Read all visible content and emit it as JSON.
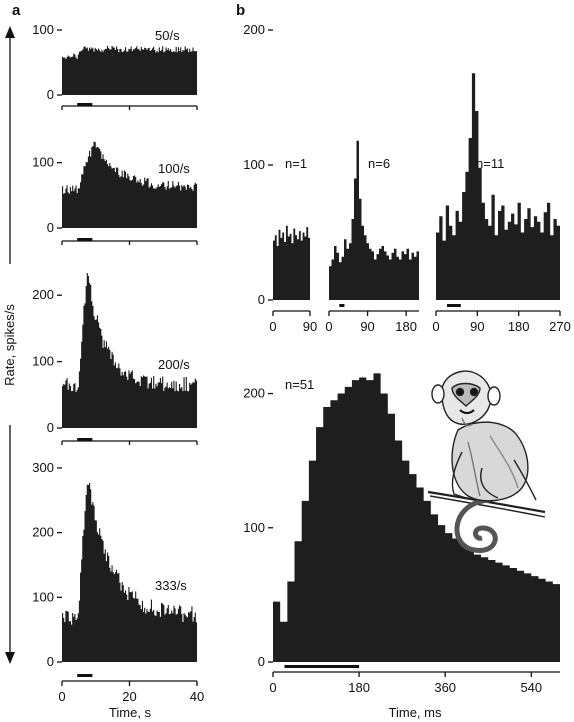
{
  "figure": {
    "panel_a_label": "a",
    "panel_b_label": "b",
    "y_axis_label": "Rate, spikes/s",
    "panel_a_x_label": "Time, s",
    "panel_b_x_label": "Time, ms"
  },
  "chart_data": [
    {
      "id": "a1",
      "type": "histogram",
      "label": "50/s",
      "xlim": [
        0,
        40
      ],
      "ylim": [
        0,
        100
      ],
      "yticks": [
        0,
        100
      ],
      "stim": [
        4.5,
        9
      ],
      "profile": {
        "baseline": 60,
        "peak": 72,
        "plateau": 70,
        "onset": 2,
        "decay": 10
      }
    },
    {
      "id": "a2",
      "type": "histogram",
      "label": "100/s",
      "xlim": [
        0,
        40
      ],
      "ylim": [
        0,
        150
      ],
      "yticks": [
        0,
        100
      ],
      "stim": [
        4.5,
        9
      ],
      "profile": {
        "baseline": 58,
        "peak": 130,
        "plateau": 62,
        "onset": 5,
        "decay": 7
      }
    },
    {
      "id": "a3",
      "type": "histogram",
      "label": "200/s",
      "xlim": [
        0,
        40
      ],
      "ylim": [
        0,
        250
      ],
      "yticks": [
        0,
        100,
        200
      ],
      "stim": [
        4.5,
        9
      ],
      "profile": {
        "baseline": 65,
        "peak": 235,
        "plateau": 65,
        "onset": 3,
        "decay": 5
      }
    },
    {
      "id": "a4",
      "type": "histogram",
      "label": "333/s",
      "xlim": [
        0,
        40
      ],
      "xticks": [
        0,
        20,
        40
      ],
      "ylim": [
        0,
        320
      ],
      "yticks": [
        0,
        100,
        200,
        300
      ],
      "stim": [
        4.5,
        9
      ],
      "profile": {
        "baseline": 70,
        "peak": 285,
        "plateau": 70,
        "onset": 3,
        "decay": 7
      }
    },
    {
      "id": "b1",
      "type": "histogram",
      "label": "n=1",
      "xlim": [
        0,
        90
      ],
      "xticks": [
        0,
        90
      ],
      "ylim": [
        0,
        200
      ],
      "yticks": [
        0,
        100,
        200
      ],
      "values": [
        44,
        48,
        40,
        52,
        46,
        50,
        43,
        55,
        47,
        49,
        42,
        53,
        48,
        45,
        51,
        44,
        50,
        47,
        54,
        46
      ]
    },
    {
      "id": "b2",
      "type": "histogram",
      "label": "n=6",
      "xlim": [
        0,
        210
      ],
      "xticks": [
        0,
        90,
        180
      ],
      "ylim": [
        0,
        200
      ],
      "stim": [
        24,
        36
      ],
      "values": [
        25,
        30,
        40,
        35,
        28,
        32,
        45,
        38,
        42,
        60,
        90,
        118,
        75,
        55,
        48,
        42,
        38,
        36,
        30,
        34,
        38,
        40,
        36,
        33,
        30,
        35,
        38,
        32,
        30,
        36,
        34,
        38,
        30,
        35,
        32,
        36
      ]
    },
    {
      "id": "b3",
      "type": "histogram",
      "label": "n=11",
      "xlim": [
        0,
        270
      ],
      "xticks": [
        0,
        90,
        180,
        270
      ],
      "ylim": [
        0,
        200
      ],
      "stim": [
        24,
        54
      ],
      "values": [
        50,
        62,
        44,
        70,
        55,
        48,
        66,
        58,
        80,
        95,
        120,
        168,
        140,
        98,
        72,
        60,
        55,
        78,
        48,
        66,
        70,
        52,
        58,
        64,
        56,
        72,
        50,
        60,
        68,
        54,
        62,
        58,
        50,
        65,
        72,
        48,
        60,
        55
      ]
    },
    {
      "id": "b4",
      "type": "histogram",
      "label": "n=51",
      "xlim": [
        0,
        600
      ],
      "xticks": [
        0,
        180,
        360,
        540
      ],
      "ylim": [
        0,
        225
      ],
      "yticks": [
        0,
        100,
        200
      ],
      "stim": [
        24,
        180
      ],
      "bin_width": 15,
      "values": [
        45,
        30,
        60,
        90,
        120,
        150,
        175,
        190,
        195,
        200,
        205,
        210,
        212,
        210,
        215,
        200,
        185,
        165,
        150,
        140,
        130,
        120,
        110,
        102,
        96,
        92,
        88,
        84,
        80,
        78,
        76,
        74,
        72,
        70,
        68,
        66,
        64,
        62,
        60,
        58
      ]
    }
  ]
}
